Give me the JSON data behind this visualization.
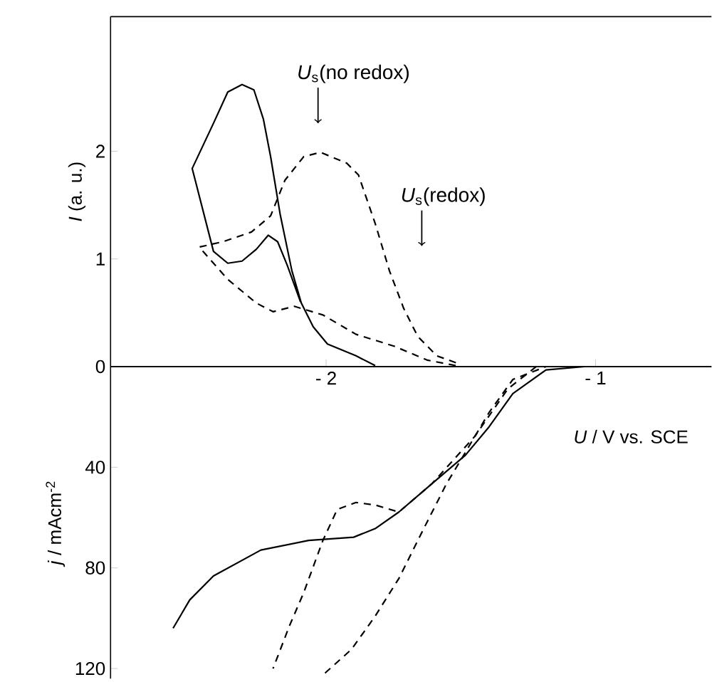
{
  "chart_data": [
    {
      "type": "line",
      "ylabel": "*I* (a. u.)",
      "xlabel": "*U* / V vs. SCE",
      "xlim": [
        -2.8,
        -0.57
      ],
      "ylim": [
        0,
        3.25
      ],
      "xticks": [
        {
          "value": -2,
          "label": "- 2"
        },
        {
          "value": -1,
          "label": "- 1"
        }
      ],
      "yticks": [
        0,
        1,
        2
      ],
      "series": [
        {
          "color": "#000000",
          "line_style": "solid",
          "x": [
            -1.818,
            -1.889,
            -1.995,
            -2.048,
            -2.092,
            -2.127,
            -2.171,
            -2.206,
            -2.233,
            -2.268,
            -2.312,
            -2.365,
            -2.418,
            -2.497,
            -2.418,
            -2.365,
            -2.312,
            -2.259,
            -2.215,
            -2.18,
            -2.144,
            -2.095
          ],
          "values": [
            0.01,
            0.1,
            0.21,
            0.37,
            0.59,
            0.89,
            1.42,
            1.95,
            2.3,
            2.57,
            2.62,
            2.55,
            2.26,
            1.84,
            1.07,
            0.96,
            0.98,
            1.09,
            1.22,
            1.16,
            0.94,
            0.6
          ]
        },
        {
          "color": "#000000",
          "line_style": "dashed",
          "x": [
            -1.519,
            -1.624,
            -1.748,
            -1.889,
            -2.012,
            -2.118,
            -2.197,
            -2.259,
            -2.365,
            -2.471,
            -2.383,
            -2.277,
            -2.206,
            -2.153,
            -2.083,
            -2.021,
            -1.924,
            -1.88,
            -1.818,
            -1.765,
            -1.712,
            -1.66,
            -1.589,
            -1.5
          ],
          "values": [
            0.01,
            0.06,
            0.19,
            0.3,
            0.48,
            0.56,
            0.51,
            0.59,
            0.81,
            1.11,
            1.16,
            1.25,
            1.4,
            1.73,
            1.95,
            1.99,
            1.89,
            1.78,
            1.33,
            0.89,
            0.54,
            0.28,
            0.1,
            0.02
          ]
        }
      ],
      "annotations": [
        {
          "text": "*U*$_{s}$(no redox)",
          "x": -2.03,
          "y": 2.26
        },
        {
          "text": "*U*$_{s}$(redox)",
          "x": -1.645,
          "y": 1.12
        }
      ]
    },
    {
      "type": "line",
      "ylabel": "*j* / mAcm$^{-2}$",
      "tick_labels": "y",
      "xlim": [
        -2.8,
        -0.57
      ],
      "ylim": [
        124,
        0
      ],
      "yticks": [
        40,
        80,
        120
      ],
      "series": [
        {
          "color": "#000000",
          "line_style": "solid",
          "x": [
            -1.042,
            -1.184,
            -1.307,
            -1.395,
            -1.483,
            -1.607,
            -1.73,
            -1.818,
            -1.898,
            -2.065,
            -2.242,
            -2.418,
            -2.506,
            -2.568
          ],
          "values": [
            0,
            1.3,
            10.7,
            23.9,
            35.2,
            46.5,
            57.8,
            64.4,
            67.8,
            69.1,
            72.9,
            83.2,
            92.7,
            104
          ]
        },
        {
          "color": "#000000",
          "line_style": "dashed",
          "x": [
            -2.004,
            -1.906,
            -1.818,
            -1.73,
            -1.642,
            -1.553,
            -1.5,
            -1.395,
            -1.307,
            -1.184
          ],
          "values": [
            121.8,
            112.4,
            99.2,
            84.2,
            65.3,
            46.5,
            37.1,
            18.2,
            5.1,
            0
          ]
        },
        {
          "color": "#000000",
          "line_style": "dashed",
          "x": [
            -1.22,
            -1.325,
            -1.448,
            -1.607,
            -1.73,
            -1.818,
            -1.889,
            -1.959,
            -2.012,
            -2.083,
            -2.136,
            -2.197
          ],
          "values": [
            0,
            8.8,
            27.7,
            46.5,
            57.8,
            55,
            54,
            56.8,
            69.1,
            89.8,
            103,
            120
          ]
        }
      ]
    }
  ]
}
